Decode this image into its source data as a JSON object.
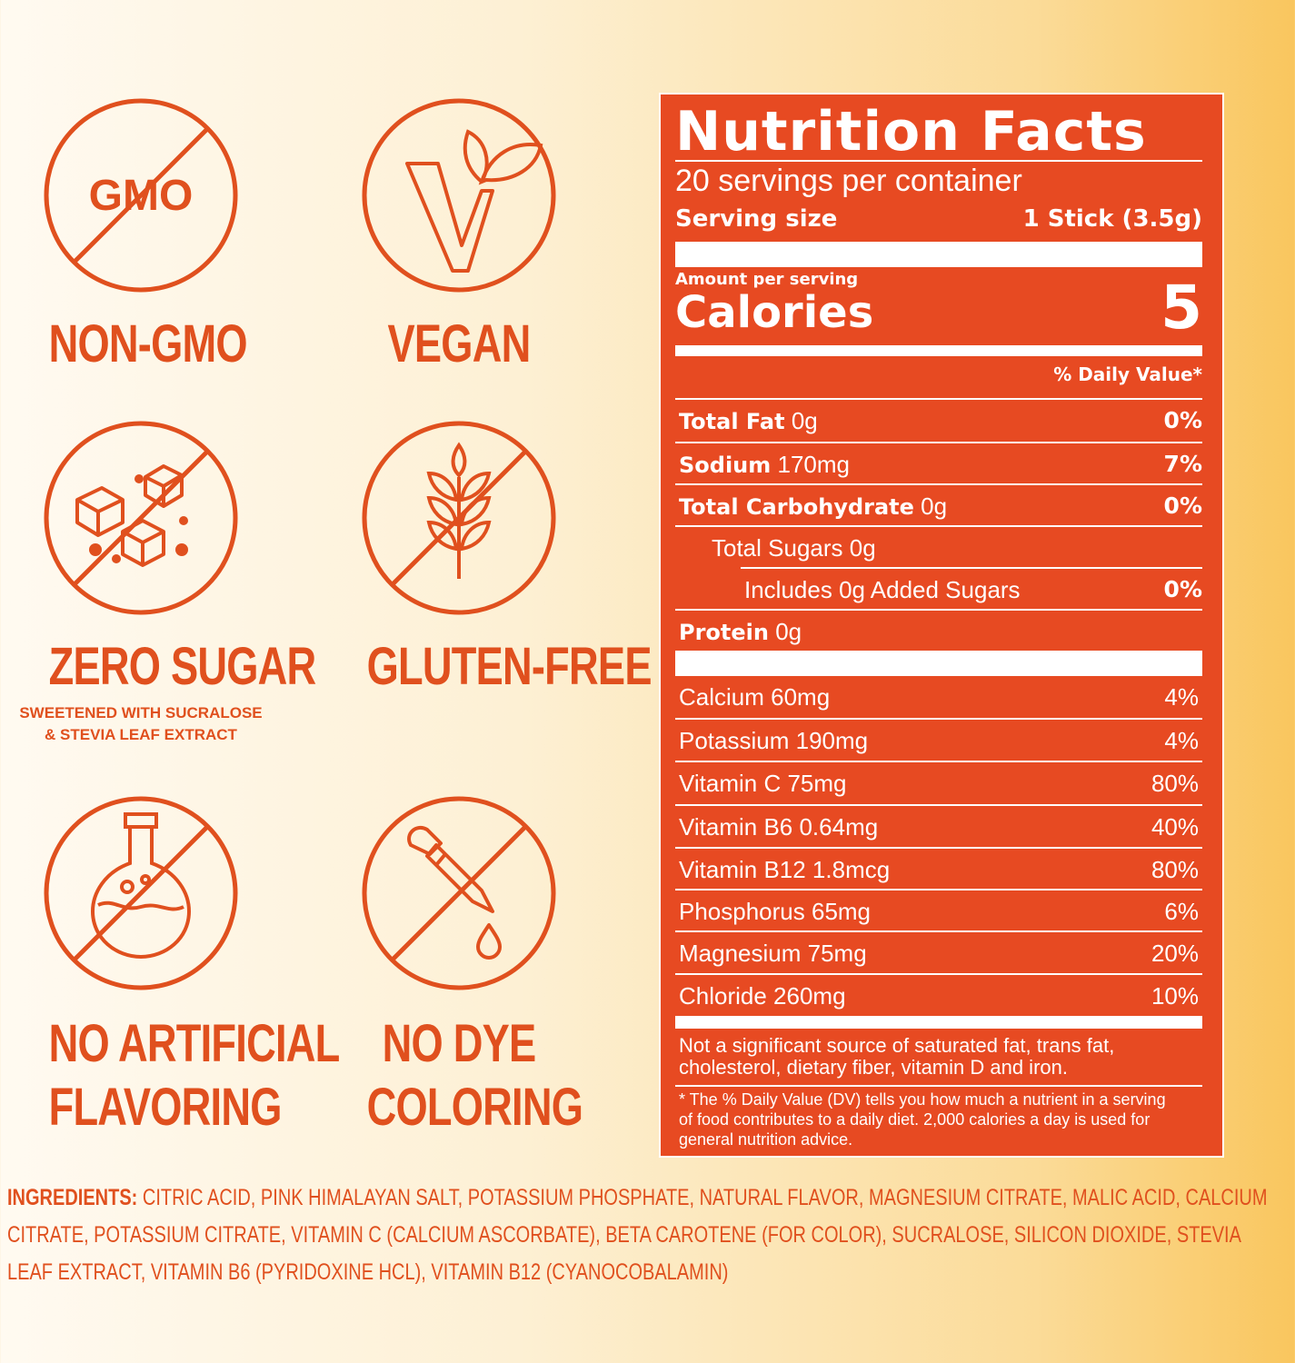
{
  "badges": [
    {
      "icon": "no-gmo-icon",
      "label": "NON-GMO",
      "icon_text": "GMO"
    },
    {
      "icon": "vegan-leaf-icon",
      "label": "VEGAN"
    },
    {
      "icon": "sugar-cubes-crossed-icon",
      "label": "ZERO SUGAR",
      "sub1": "SWEETENED WITH SUCRALOSE",
      "sub2": "&  STEVIA LEAF EXTRACT"
    },
    {
      "icon": "wheat-crossed-icon",
      "label": "GLUTEN-FREE"
    },
    {
      "icon": "flask-crossed-icon",
      "label1": "NO ARTIFICIAL",
      "label2": "FLAVORING"
    },
    {
      "icon": "dropper-crossed-icon",
      "label1": "NO DYE",
      "label2": "COLORING"
    }
  ],
  "nutrition": {
    "title": "Nutrition Facts",
    "servings": "20 servings per container",
    "serving_size_label": "Serving size",
    "serving_size_value": "1 Stick (3.5g)",
    "amount_per_serving": "Amount per serving",
    "calories_label": "Calories",
    "calories_value": "5",
    "dv_header": "% Daily Value*",
    "nutrients": [
      {
        "bold": "Total Fat",
        "amount": "0g",
        "dv": "0%"
      },
      {
        "bold": "Sodium",
        "amount": "170mg",
        "dv": "7%"
      },
      {
        "bold": "Total Carbohydrate",
        "amount": "0g",
        "dv": "0%"
      },
      {
        "bold": "",
        "amount": "Total Sugars 0g",
        "dv": ""
      },
      {
        "bold": "",
        "amount": "Includes 0g Added Sugars",
        "dv": "0%"
      },
      {
        "bold": "Protein",
        "amount": "0g",
        "dv": ""
      }
    ],
    "vitamins": [
      {
        "name": "Calcium 60mg",
        "dv": "4%"
      },
      {
        "name": "Potassium 190mg",
        "dv": "4%"
      },
      {
        "name": "Vitamin C 75mg",
        "dv": "80%"
      },
      {
        "name": "Vitamin B6 0.64mg",
        "dv": "40%"
      },
      {
        "name": "Vitamin B12 1.8mcg",
        "dv": "80%"
      },
      {
        "name": "Phosphorus 65mg",
        "dv": "6%"
      },
      {
        "name": "Magnesium 75mg",
        "dv": "20%"
      },
      {
        "name": "Chloride 260mg",
        "dv": "10%"
      }
    ],
    "not_significant_1": "Not a significant source of saturated fat, trans fat,",
    "not_significant_2": "cholesterol, dietary fiber, vitamin D and iron.",
    "footnote_1": "* The % Daily Value (DV) tells you how much a nutrient in a serving",
    "footnote_2": "of food contributes to a daily diet. 2,000 calories a day is used for",
    "footnote_3": "general nutrition advice."
  },
  "ingredients": {
    "heading": "INGREDIENTS:",
    "text": " CITRIC ACID, PINK HIMALAYAN SALT, POTASSIUM PHOSPHATE, NATURAL FLAVOR, MAGNESIUM CITRATE, MALIC ACID, CALCIUM CITRATE, POTASSIUM CITRATE, VITAMIN C (CALCIUM ASCORBATE), BETA CAROTENE (FOR COLOR), SUCRALOSE, SILICON DIOXIDE, STEVIA LEAF EXTRACT, VITAMIN B6 (PYRIDOXINE HCL), VITAMIN B12 (CYANOCOBALAMIN)"
  },
  "colors": {
    "accent": "#e0501e",
    "label_bg": "#e74a22",
    "text_light": "#ffffff"
  }
}
